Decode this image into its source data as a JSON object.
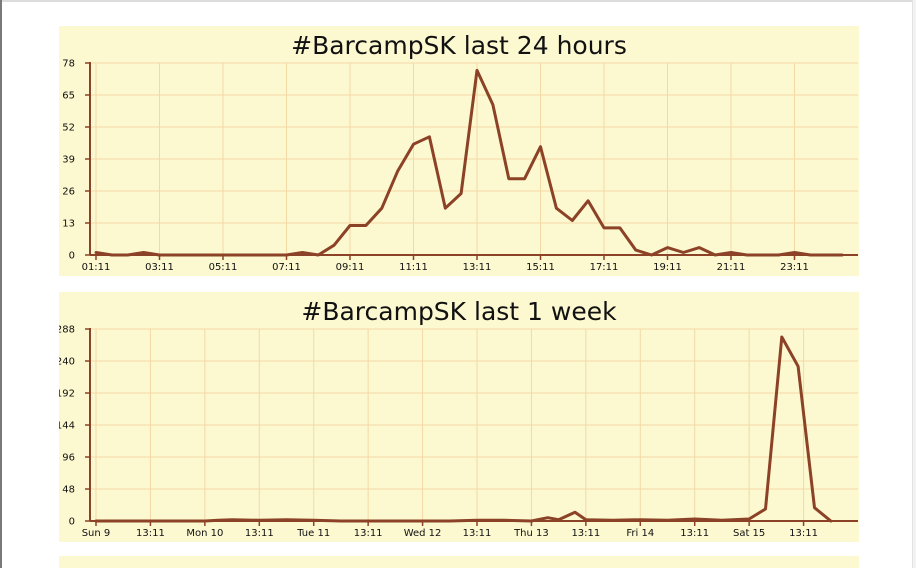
{
  "chart_data": [
    {
      "type": "line",
      "title": "#BarcampSK last 24 hours",
      "xlabel": "",
      "ylabel": "",
      "grid": true,
      "ylim": [
        0,
        78
      ],
      "yticks": [
        0,
        13,
        26,
        39,
        52,
        65,
        78
      ],
      "xlim": [
        0,
        48
      ],
      "xticks": [
        {
          "pos": 0,
          "label": "01:11"
        },
        {
          "pos": 4,
          "label": "03:11"
        },
        {
          "pos": 8,
          "label": "05:11"
        },
        {
          "pos": 12,
          "label": "07:11"
        },
        {
          "pos": 16,
          "label": "09:11"
        },
        {
          "pos": 20,
          "label": "11:11"
        },
        {
          "pos": 24,
          "label": "13:11"
        },
        {
          "pos": 28,
          "label": "15:11"
        },
        {
          "pos": 32,
          "label": "17:11"
        },
        {
          "pos": 36,
          "label": "19:11"
        },
        {
          "pos": 40,
          "label": "21:11"
        },
        {
          "pos": 44,
          "label": "23:11"
        }
      ],
      "series": [
        {
          "color": "#8b4226",
          "values": [
            1,
            0,
            0,
            1,
            0,
            0,
            0,
            0,
            0,
            0,
            0,
            0,
            0,
            1,
            0,
            4,
            12,
            12,
            19,
            34,
            45,
            48,
            19,
            25,
            75,
            61,
            31,
            31,
            44,
            19,
            14,
            22,
            11,
            11,
            2,
            0,
            3,
            1,
            3,
            0,
            1,
            0,
            0,
            0,
            1,
            0,
            0,
            0
          ]
        }
      ]
    },
    {
      "type": "line",
      "title": "#BarcampSK last 1 week",
      "xlabel": "",
      "ylabel": "",
      "grid": true,
      "ylim": [
        0,
        288
      ],
      "yticks": [
        0,
        48,
        96,
        144,
        192,
        240,
        288
      ],
      "xlim": [
        0,
        14
      ],
      "xticks": [
        {
          "pos": 0,
          "label": "Sun 9"
        },
        {
          "pos": 1,
          "label": "13:11"
        },
        {
          "pos": 2,
          "label": "Mon 10"
        },
        {
          "pos": 3,
          "label": "13:11"
        },
        {
          "pos": 4,
          "label": "Tue 11"
        },
        {
          "pos": 5,
          "label": "13:11"
        },
        {
          "pos": 6,
          "label": "Wed 12"
        },
        {
          "pos": 7,
          "label": "13:11"
        },
        {
          "pos": 8,
          "label": "Thu 13"
        },
        {
          "pos": 9,
          "label": "13:11"
        },
        {
          "pos": 10,
          "label": "Fri 14"
        },
        {
          "pos": 11,
          "label": "13:11"
        },
        {
          "pos": 12,
          "label": "Sat 15"
        },
        {
          "pos": 13,
          "label": "13:11"
        }
      ],
      "series": [
        {
          "color": "#8b4226",
          "points": [
            [
              0,
              0
            ],
            [
              0.5,
              0
            ],
            [
              1,
              0
            ],
            [
              1.5,
              0
            ],
            [
              2,
              0
            ],
            [
              2.25,
              1
            ],
            [
              2.5,
              2
            ],
            [
              3,
              1
            ],
            [
              3.5,
              2
            ],
            [
              4,
              1
            ],
            [
              4.5,
              0
            ],
            [
              5,
              0
            ],
            [
              5.5,
              0
            ],
            [
              6,
              0
            ],
            [
              6.5,
              0
            ],
            [
              7,
              1
            ],
            [
              7.5,
              1
            ],
            [
              8,
              0
            ],
            [
              8.3,
              5
            ],
            [
              8.5,
              2
            ],
            [
              8.8,
              13
            ],
            [
              9,
              2
            ],
            [
              9.5,
              1
            ],
            [
              10,
              2
            ],
            [
              10.5,
              1
            ],
            [
              11,
              3
            ],
            [
              11.5,
              1
            ],
            [
              12,
              3
            ],
            [
              12.3,
              18
            ],
            [
              12.6,
              276
            ],
            [
              12.9,
              232
            ],
            [
              13.2,
              20
            ],
            [
              13.5,
              0
            ]
          ]
        }
      ]
    }
  ]
}
